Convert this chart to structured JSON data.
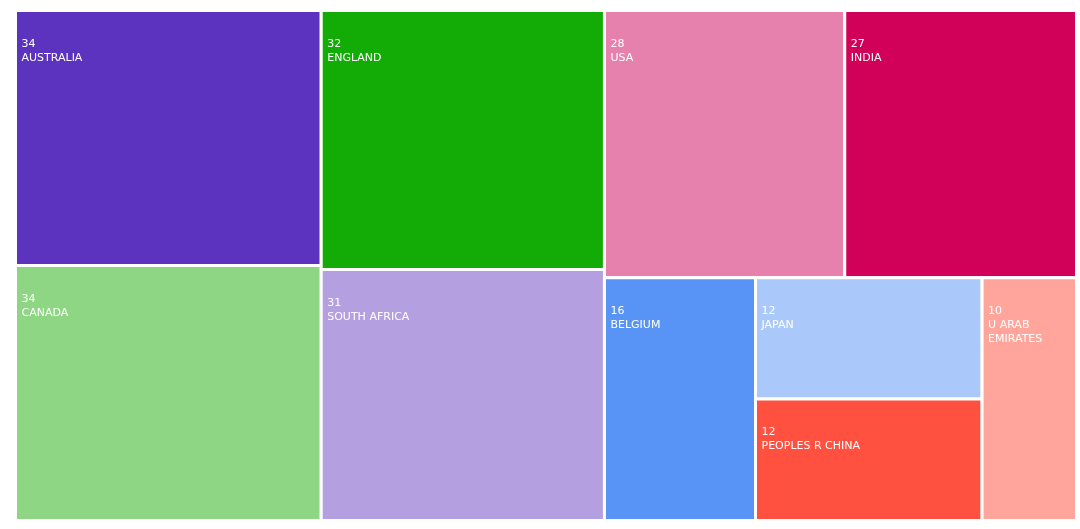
{
  "chart_data": {
    "type": "other",
    "categories": [
      "AUSTRALIA",
      "CANADA",
      "ENGLAND",
      "SOUTH AFRICA",
      "USA",
      "INDIA",
      "BELGIUM",
      "JAPAN",
      "PEOPLES R CHINA",
      "U ARAB EMIRATES"
    ],
    "values": [
      34,
      34,
      32,
      31,
      28,
      27,
      16,
      12,
      12,
      10
    ],
    "colors": [
      "#5c33bf",
      "#8ed683",
      "#13ab05",
      "#b49fe0",
      "#e680ad",
      "#d10058",
      "#5894f5",
      "#aac8fa",
      "#ff5040",
      "#ffa59c"
    ],
    "data_labels": true
  }
}
